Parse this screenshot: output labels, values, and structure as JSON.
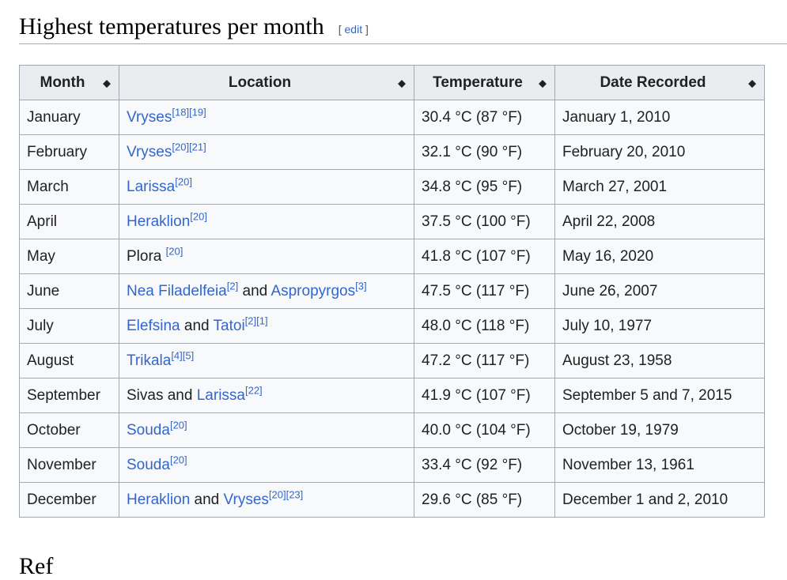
{
  "section": {
    "title": "Highest temperatures per month",
    "edit_open": "[ ",
    "edit_label": "edit",
    "edit_close": " ]"
  },
  "table": {
    "headers": [
      "Month",
      "Location",
      "Temperature",
      "Date Recorded"
    ],
    "sort_icon": "◆",
    "rows": [
      {
        "month": "January",
        "location": [
          {
            "text": "Vryses",
            "link": true
          },
          {
            "sup": [
              "[18]",
              "[19]"
            ]
          }
        ],
        "temp": "30.4 °C (87 °F)",
        "date": "January 1, 2010"
      },
      {
        "month": "February",
        "location": [
          {
            "text": "Vryses",
            "link": true
          },
          {
            "sup": [
              "[20]",
              "[21]"
            ]
          }
        ],
        "temp": "32.1 °C (90 °F)",
        "date": "February 20, 2010"
      },
      {
        "month": "March",
        "location": [
          {
            "text": "Larissa",
            "link": true
          },
          {
            "sup": [
              "[20]"
            ]
          }
        ],
        "temp": "34.8 °C (95 °F)",
        "date": "March 27, 2001"
      },
      {
        "month": "April",
        "location": [
          {
            "text": "Heraklion",
            "link": true
          },
          {
            "sup": [
              "[20]"
            ]
          }
        ],
        "temp": "37.5 °C (100 °F)",
        "date": "April 22, 2008"
      },
      {
        "month": "May",
        "location": [
          {
            "text": "Plora ",
            "link": false
          },
          {
            "sup": [
              "[20]"
            ]
          }
        ],
        "temp": "41.8 °C (107 °F)",
        "date": "May 16, 2020"
      },
      {
        "month": "June",
        "location": [
          {
            "text": "Nea Filadelfeia",
            "link": true
          },
          {
            "sup": [
              "[2]"
            ]
          },
          {
            "text": " and ",
            "link": false
          },
          {
            "text": "Aspropyrgos",
            "link": true
          },
          {
            "sup": [
              "[3]"
            ]
          }
        ],
        "temp": "47.5 °C (117 °F)",
        "date": "June 26, 2007"
      },
      {
        "month": "July",
        "location": [
          {
            "text": "Elefsina",
            "link": true
          },
          {
            "text": " and ",
            "link": false
          },
          {
            "text": "Tatoi",
            "link": true
          },
          {
            "sup": [
              "[2]",
              "[1]"
            ]
          }
        ],
        "temp": "48.0 °C (118 °F)",
        "date": "July 10, 1977"
      },
      {
        "month": "August",
        "location": [
          {
            "text": "Trikala",
            "link": true
          },
          {
            "sup": [
              "[4]",
              "[5]"
            ]
          }
        ],
        "temp": "47.2 °C (117 °F)",
        "date": "August 23, 1958"
      },
      {
        "month": "September",
        "location": [
          {
            "text": "Sivas and ",
            "link": false
          },
          {
            "text": "Larissa",
            "link": true
          },
          {
            "sup": [
              "[22]"
            ]
          }
        ],
        "temp": "41.9 °C (107 °F)",
        "date": "September 5 and 7, 2015"
      },
      {
        "month": "October",
        "location": [
          {
            "text": "Souda",
            "link": true
          },
          {
            "sup": [
              "[20]"
            ]
          }
        ],
        "temp": "40.0 °C (104 °F)",
        "date": "October 19, 1979"
      },
      {
        "month": "November",
        "location": [
          {
            "text": "Souda",
            "link": true
          },
          {
            "sup": [
              "[20]"
            ]
          }
        ],
        "temp": "33.4 °C (92 °F)",
        "date": "November 13, 1961"
      },
      {
        "month": "December",
        "location": [
          {
            "text": "Heraklion",
            "link": true
          },
          {
            "text": " and ",
            "link": false
          },
          {
            "text": "Vryses",
            "link": true
          },
          {
            "sup": [
              "[20]",
              "[23]"
            ]
          }
        ],
        "temp": "29.6 °C (85 °F)",
        "date": "December 1 and 2, 2010"
      }
    ]
  },
  "next_section": {
    "title_partial": "Ref"
  },
  "colors": {
    "link": "#3366cc",
    "header_bg": "#eaecf0",
    "cell_bg": "#f8f9fa",
    "border": "#a2a9b1"
  }
}
